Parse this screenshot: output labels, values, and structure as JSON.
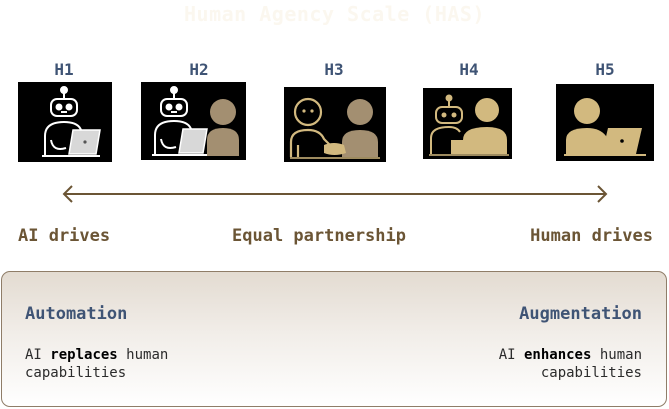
{
  "title": "Human Agency Scale (HAS)",
  "levels": [
    {
      "label": "H1",
      "icon": "robot-laptop-icon"
    },
    {
      "label": "H2",
      "icon": "robot-laptop-with-human-icon"
    },
    {
      "label": "H3",
      "icon": "handshake-icon"
    },
    {
      "label": "H4",
      "icon": "human-with-robot-assistant-icon"
    },
    {
      "label": "H5",
      "icon": "human-laptop-icon"
    }
  ],
  "axis": {
    "left": "AI drives",
    "center": "Equal partnership",
    "right": "Human drives"
  },
  "panel": {
    "left": {
      "heading": "Automation",
      "pre": "AI ",
      "emphasis": "replaces",
      "post": " human",
      "line2": "capabilities"
    },
    "right": {
      "heading": "Augmentation",
      "pre": "AI ",
      "emphasis": "enhances",
      "post": " human",
      "line2": "capabilities"
    }
  },
  "colors": {
    "robot_outline": "#ffffff",
    "human_fill": "#d2b97f",
    "human_fill_muted": "#a38f71",
    "heading_blue": "#3f5475",
    "axis_brown": "#6b5535",
    "title_faint": "#fbf7ef"
  }
}
